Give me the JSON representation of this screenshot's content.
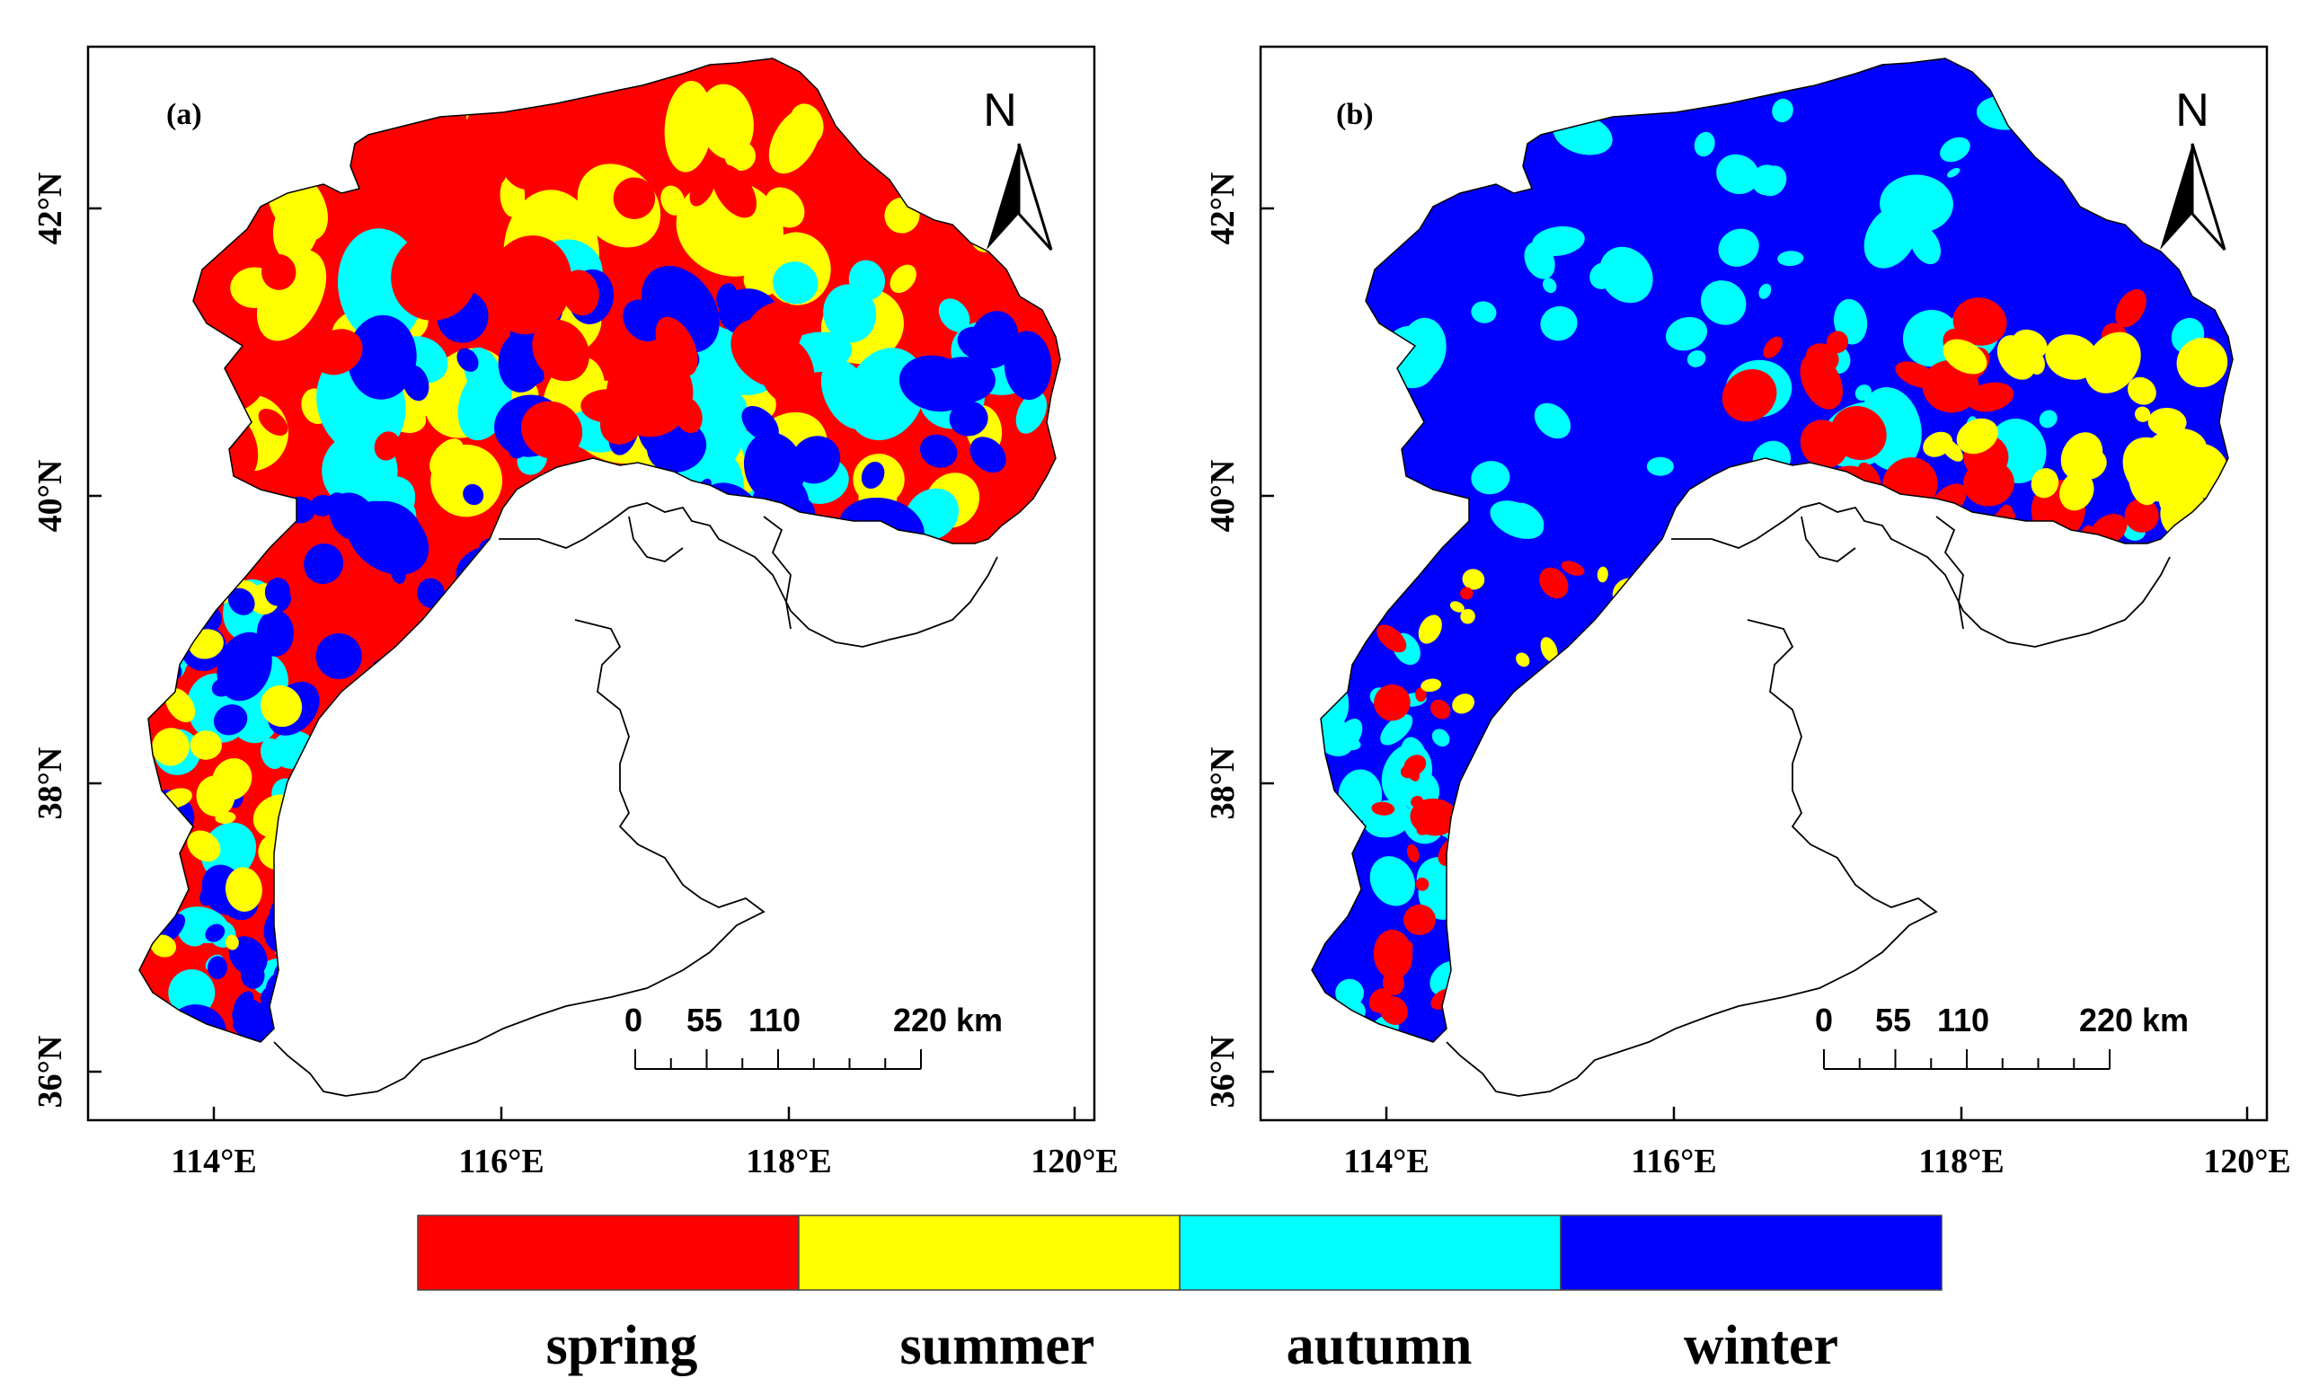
{
  "figure": {
    "panels": [
      {
        "id": "a",
        "label": "(a)",
        "x_ticks": [
          "114°E",
          "116°E",
          "118°E",
          "120°E"
        ],
        "y_ticks": [
          "42°N",
          "40°N",
          "38°N",
          "36°N"
        ],
        "north_arrow": "N",
        "scale_bar": {
          "labels": [
            "0",
            "55",
            "110",
            "220 km"
          ]
        },
        "dominant_season": "spring/summer mix"
      },
      {
        "id": "b",
        "label": "(b)",
        "x_ticks": [
          "114°E",
          "116°E",
          "118°E",
          "120°E"
        ],
        "y_ticks": [
          "42°N",
          "40°N",
          "38°N",
          "36°N"
        ],
        "north_arrow": "N",
        "scale_bar": {
          "labels": [
            "0",
            "55",
            "110",
            "220 km"
          ]
        },
        "dominant_season": "winter"
      }
    ],
    "legend": [
      {
        "label": "spring",
        "color": "#ff0000"
      },
      {
        "label": "summer",
        "color": "#ffff00"
      },
      {
        "label": "autumn",
        "color": "#00ffff"
      },
      {
        "label": "winter",
        "color": "#0000ff"
      }
    ]
  }
}
